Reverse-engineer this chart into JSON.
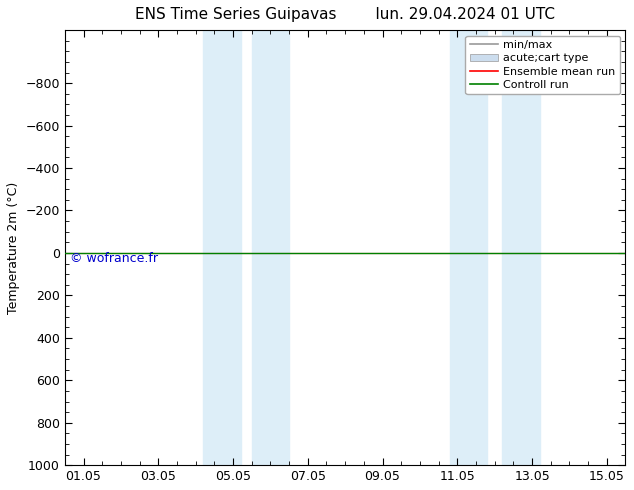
{
  "title_left": "ENS Time Series Guipavas",
  "title_right": "lun. 29.04.2024 01 UTC",
  "ylabel": "Temperature 2m (°C)",
  "ylim_bottom": 1000,
  "ylim_top": -1050,
  "yticks": [
    -800,
    -600,
    -400,
    -200,
    0,
    200,
    400,
    600,
    800,
    1000
  ],
  "xlim_start": -0.5,
  "xlim_end": 14.5,
  "xtick_labels": [
    "01.05",
    "03.05",
    "05.05",
    "07.05",
    "09.05",
    "11.05",
    "13.05",
    "15.05"
  ],
  "xtick_positions": [
    0,
    2,
    4,
    6,
    8,
    10,
    12,
    14
  ],
  "shaded_bands": [
    [
      3.2,
      4.2
    ],
    [
      4.5,
      5.5
    ],
    [
      9.8,
      10.8
    ],
    [
      11.2,
      12.2
    ]
  ],
  "shaded_color": "#ddeef8",
  "green_line_y": 0,
  "red_line_y": 0,
  "control_run_color": "#008000",
  "ensemble_mean_color": "#ff0000",
  "watermark": "© wofrance.fr",
  "watermark_color": "#0000cc",
  "legend_entries": [
    "min/max",
    "acute;cart type",
    "Ensemble mean run",
    "Controll run"
  ],
  "legend_line_color": "#999999",
  "legend_patch_color": "#ccddee",
  "legend_red_color": "#ff0000",
  "legend_green_color": "#008000",
  "background_color": "#ffffff",
  "figsize": [
    6.34,
    4.9
  ],
  "dpi": 100,
  "title_fontsize": 11,
  "axis_fontsize": 9,
  "tick_fontsize": 9,
  "legend_fontsize": 8
}
